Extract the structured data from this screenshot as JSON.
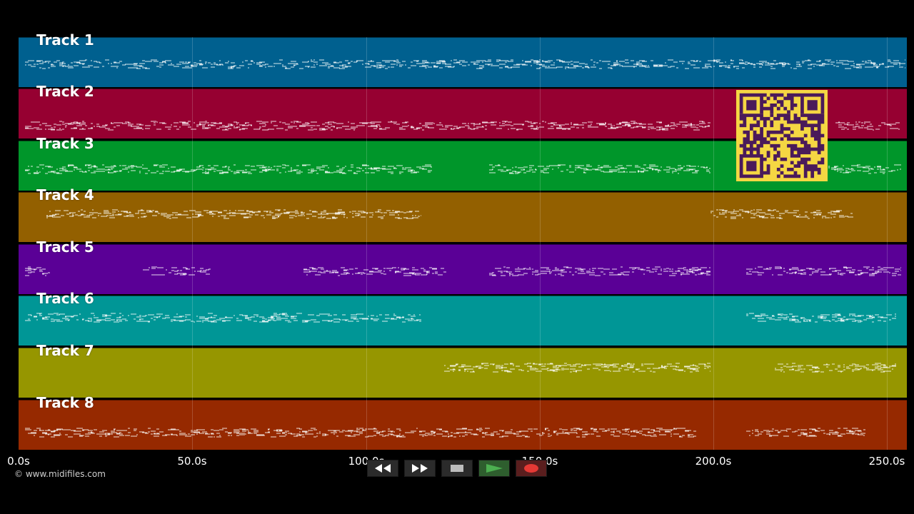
{
  "tracks": [
    {
      "name": "Track 1",
      "color": "#00608f"
    },
    {
      "name": "Track 2",
      "color": "#960031"
    },
    {
      "name": "Track 3",
      "color": "#00962a"
    },
    {
      "name": "Track 4",
      "color": "#936000"
    },
    {
      "name": "Track 5",
      "color": "#5a0096"
    },
    {
      "name": "Track 6",
      "color": "#009696"
    },
    {
      "name": "Track 7",
      "color": "#969600"
    },
    {
      "name": "Track 8",
      "color": "#962900"
    }
  ],
  "time_axis": {
    "ticks": [
      "0.0s",
      "50.0s",
      "100.0s",
      "150.0s",
      "200.0s",
      "250.0s"
    ],
    "tick_values": [
      0,
      50,
      100,
      150,
      200,
      250
    ],
    "max": 255
  },
  "copyright": "© www.midifiles.com",
  "transport": {
    "buttons": [
      {
        "name": "rewind",
        "icon": "rewind-icon"
      },
      {
        "name": "fast-forward",
        "icon": "fast-forward-icon"
      },
      {
        "name": "stop",
        "icon": "stop-icon"
      },
      {
        "name": "play",
        "icon": "play-icon",
        "color": "#4caf50"
      },
      {
        "name": "record",
        "icon": "record-icon",
        "color": "#e53935"
      }
    ]
  },
  "qr_code": {
    "color": "#f5d743",
    "module_color": "#4a1a5a"
  }
}
